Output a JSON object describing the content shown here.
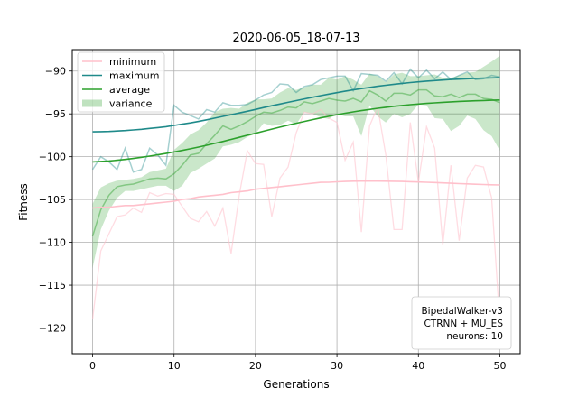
{
  "chart_data": {
    "type": "line",
    "title": "2020-06-05_18-07-13",
    "xlabel": "Generations",
    "ylabel": "Fitness",
    "xlim": [
      -2.5,
      52.5
    ],
    "ylim": [
      -123,
      -87.5
    ],
    "xticks": [
      0,
      10,
      20,
      30,
      40,
      50
    ],
    "yticks": [
      -120,
      -115,
      -110,
      -105,
      -100,
      -95,
      -90
    ],
    "grid": true,
    "legend_position": "top-left",
    "legend": [
      "minimum",
      "maximum",
      "average",
      "variance"
    ],
    "info_box": [
      "BipedalWalker-v3",
      "CTRNN + MU_ES",
      "neurons: 10"
    ],
    "info_position": "bottom-right",
    "colors": {
      "minimum": "#ffc0cb",
      "maximum": "#1f8a8a",
      "average": "#2ca02c",
      "variance": "#2ca02c"
    },
    "x": [
      0,
      1,
      2,
      3,
      4,
      5,
      6,
      7,
      8,
      9,
      10,
      11,
      12,
      13,
      14,
      15,
      16,
      17,
      18,
      19,
      20,
      21,
      22,
      23,
      24,
      25,
      26,
      27,
      28,
      29,
      30,
      31,
      32,
      33,
      34,
      35,
      36,
      37,
      38,
      39,
      40,
      41,
      42,
      43,
      44,
      45,
      46,
      47,
      48,
      49,
      50
    ],
    "series": [
      {
        "name": "minimum",
        "raw": [
          -119.0,
          -111.0,
          -109.0,
          -107.0,
          -106.8,
          -106.0,
          -106.5,
          -104.2,
          -104.6,
          -104.3,
          -104.4,
          -105.8,
          -107.2,
          -107.6,
          -106.4,
          -108.1,
          -106.0,
          -111.3,
          -104.5,
          -99.3,
          -100.8,
          -100.9,
          -107.0,
          -102.5,
          -101.2,
          -97.2,
          -94.8,
          -95.0,
          -94.5,
          -95.5,
          -96.0,
          -100.4,
          -98.3,
          -108.8,
          -96.4,
          -94.2,
          -99.8,
          -108.5,
          -108.5,
          -96.0,
          -103.0,
          -96.5,
          -99.0,
          -110.3,
          -101.0,
          -109.8,
          -102.5,
          -101.0,
          -101.2,
          -104.8,
          -119.5
        ],
        "smooth": [
          -106.0,
          -105.9,
          -105.9,
          -105.8,
          -105.7,
          -105.7,
          -105.6,
          -105.5,
          -105.4,
          -105.3,
          -105.2,
          -105.0,
          -104.9,
          -104.7,
          -104.6,
          -104.5,
          -104.4,
          -104.2,
          -104.1,
          -104.0,
          -103.8,
          -103.7,
          -103.6,
          -103.5,
          -103.4,
          -103.3,
          -103.2,
          -103.1,
          -103.0,
          -102.98,
          -102.93,
          -102.89,
          -102.86,
          -102.85,
          -102.85,
          -102.85,
          -102.86,
          -102.87,
          -102.89,
          -102.92,
          -102.95,
          -102.98,
          -103.02,
          -103.06,
          -103.1,
          -103.14,
          -103.18,
          -103.22,
          -103.25,
          -103.28,
          -103.3
        ]
      },
      {
        "name": "maximum",
        "raw": [
          -101.5,
          -100.0,
          -100.6,
          -101.5,
          -99.0,
          -101.8,
          -101.5,
          -99.0,
          -99.8,
          -101.0,
          -94.0,
          -94.8,
          -95.2,
          -95.6,
          -94.5,
          -94.8,
          -93.7,
          -94.0,
          -94.0,
          -93.9,
          -93.4,
          -92.8,
          -92.5,
          -91.5,
          -91.6,
          -92.5,
          -91.8,
          -91.6,
          -91.0,
          -90.8,
          -90.6,
          -90.6,
          -92.3,
          -90.3,
          -90.4,
          -90.5,
          -91.2,
          -90.2,
          -91.5,
          -89.8,
          -90.8,
          -89.9,
          -90.9,
          -90.1,
          -91.0,
          -90.5,
          -90.1,
          -91.0,
          -90.9,
          -90.5,
          -90.7
        ],
        "smooth": [
          -97.1,
          -97.08,
          -97.05,
          -97.0,
          -96.95,
          -96.88,
          -96.8,
          -96.7,
          -96.6,
          -96.5,
          -96.35,
          -96.2,
          -96.05,
          -95.88,
          -95.7,
          -95.5,
          -95.3,
          -95.1,
          -94.9,
          -94.7,
          -94.48,
          -94.26,
          -94.05,
          -93.85,
          -93.65,
          -93.45,
          -93.25,
          -93.06,
          -92.87,
          -92.69,
          -92.52,
          -92.36,
          -92.2,
          -92.05,
          -91.91,
          -91.78,
          -91.66,
          -91.55,
          -91.44,
          -91.35,
          -91.26,
          -91.18,
          -91.11,
          -91.05,
          -90.99,
          -90.94,
          -90.9,
          -90.86,
          -90.83,
          -90.8,
          -90.78
        ]
      },
      {
        "name": "average",
        "raw": [
          -109.3,
          -106.2,
          -104.5,
          -103.5,
          -103.3,
          -103.2,
          -102.9,
          -102.6,
          -102.5,
          -102.6,
          -102.0,
          -101.0,
          -99.8,
          -99.6,
          -98.5,
          -97.5,
          -96.4,
          -96.8,
          -96.4,
          -95.9,
          -95.3,
          -94.8,
          -94.9,
          -94.6,
          -94.2,
          -94.3,
          -93.6,
          -93.8,
          -93.5,
          -93.2,
          -93.4,
          -93.5,
          -93.2,
          -93.6,
          -92.3,
          -92.8,
          -93.5,
          -92.6,
          -92.6,
          -92.8,
          -92.2,
          -92.2,
          -92.9,
          -93.0,
          -92.7,
          -93.1,
          -92.7,
          -92.7,
          -93.2,
          -93.3,
          -93.7
        ],
        "smooth": [
          -100.6,
          -100.55,
          -100.5,
          -100.42,
          -100.32,
          -100.2,
          -100.07,
          -99.93,
          -99.78,
          -99.62,
          -99.45,
          -99.27,
          -99.08,
          -98.88,
          -98.67,
          -98.45,
          -98.22,
          -97.98,
          -97.74,
          -97.5,
          -97.26,
          -97.02,
          -96.78,
          -96.55,
          -96.32,
          -96.1,
          -95.88,
          -95.67,
          -95.47,
          -95.28,
          -95.1,
          -94.93,
          -94.77,
          -94.62,
          -94.48,
          -94.35,
          -94.23,
          -94.12,
          -94.02,
          -93.93,
          -93.85,
          -93.78,
          -93.71,
          -93.65,
          -93.6,
          -93.55,
          -93.51,
          -93.47,
          -93.44,
          -93.41,
          -93.38
        ]
      },
      {
        "name": "variance",
        "upper": [
          -105.5,
          -103.6,
          -103.1,
          -102.8,
          -102.7,
          -102.6,
          -102.4,
          -101.8,
          -101.6,
          -101.4,
          -99.2,
          -98.4,
          -97.4,
          -96.9,
          -96.0,
          -94.8,
          -94.4,
          -94.3,
          -94.4,
          -93.7,
          -93.3,
          -93.3,
          -93.2,
          -92.5,
          -92.0,
          -92.2,
          -91.9,
          -91.6,
          -91.6,
          -90.8,
          -91.0,
          -90.6,
          -91.0,
          -91.6,
          -90.3,
          -90.6,
          -91.3,
          -90.4,
          -90.2,
          -90.6,
          -90.6,
          -90.5,
          -90.4,
          -90.8,
          -90.8,
          -90.5,
          -90.2,
          -90.1,
          -89.5,
          -88.9,
          -88.2
        ],
        "lower": [
          -113.0,
          -108.5,
          -106.3,
          -104.8,
          -104.0,
          -104.0,
          -103.8,
          -103.6,
          -103.4,
          -103.4,
          -104.0,
          -103.4,
          -101.9,
          -101.4,
          -100.8,
          -100.2,
          -98.8,
          -98.6,
          -98.3,
          -97.7,
          -97.3,
          -96.1,
          -96.4,
          -96.3,
          -95.8,
          -96.2,
          -94.8,
          -95.0,
          -95.4,
          -95.6,
          -95.0,
          -95.3,
          -95.3,
          -97.6,
          -94.0,
          -95.3,
          -96.0,
          -95.0,
          -95.4,
          -95.0,
          -93.9,
          -94.0,
          -95.5,
          -95.6,
          -97.0,
          -96.4,
          -95.2,
          -95.6,
          -96.9,
          -97.6,
          -99.3
        ]
      }
    ]
  }
}
